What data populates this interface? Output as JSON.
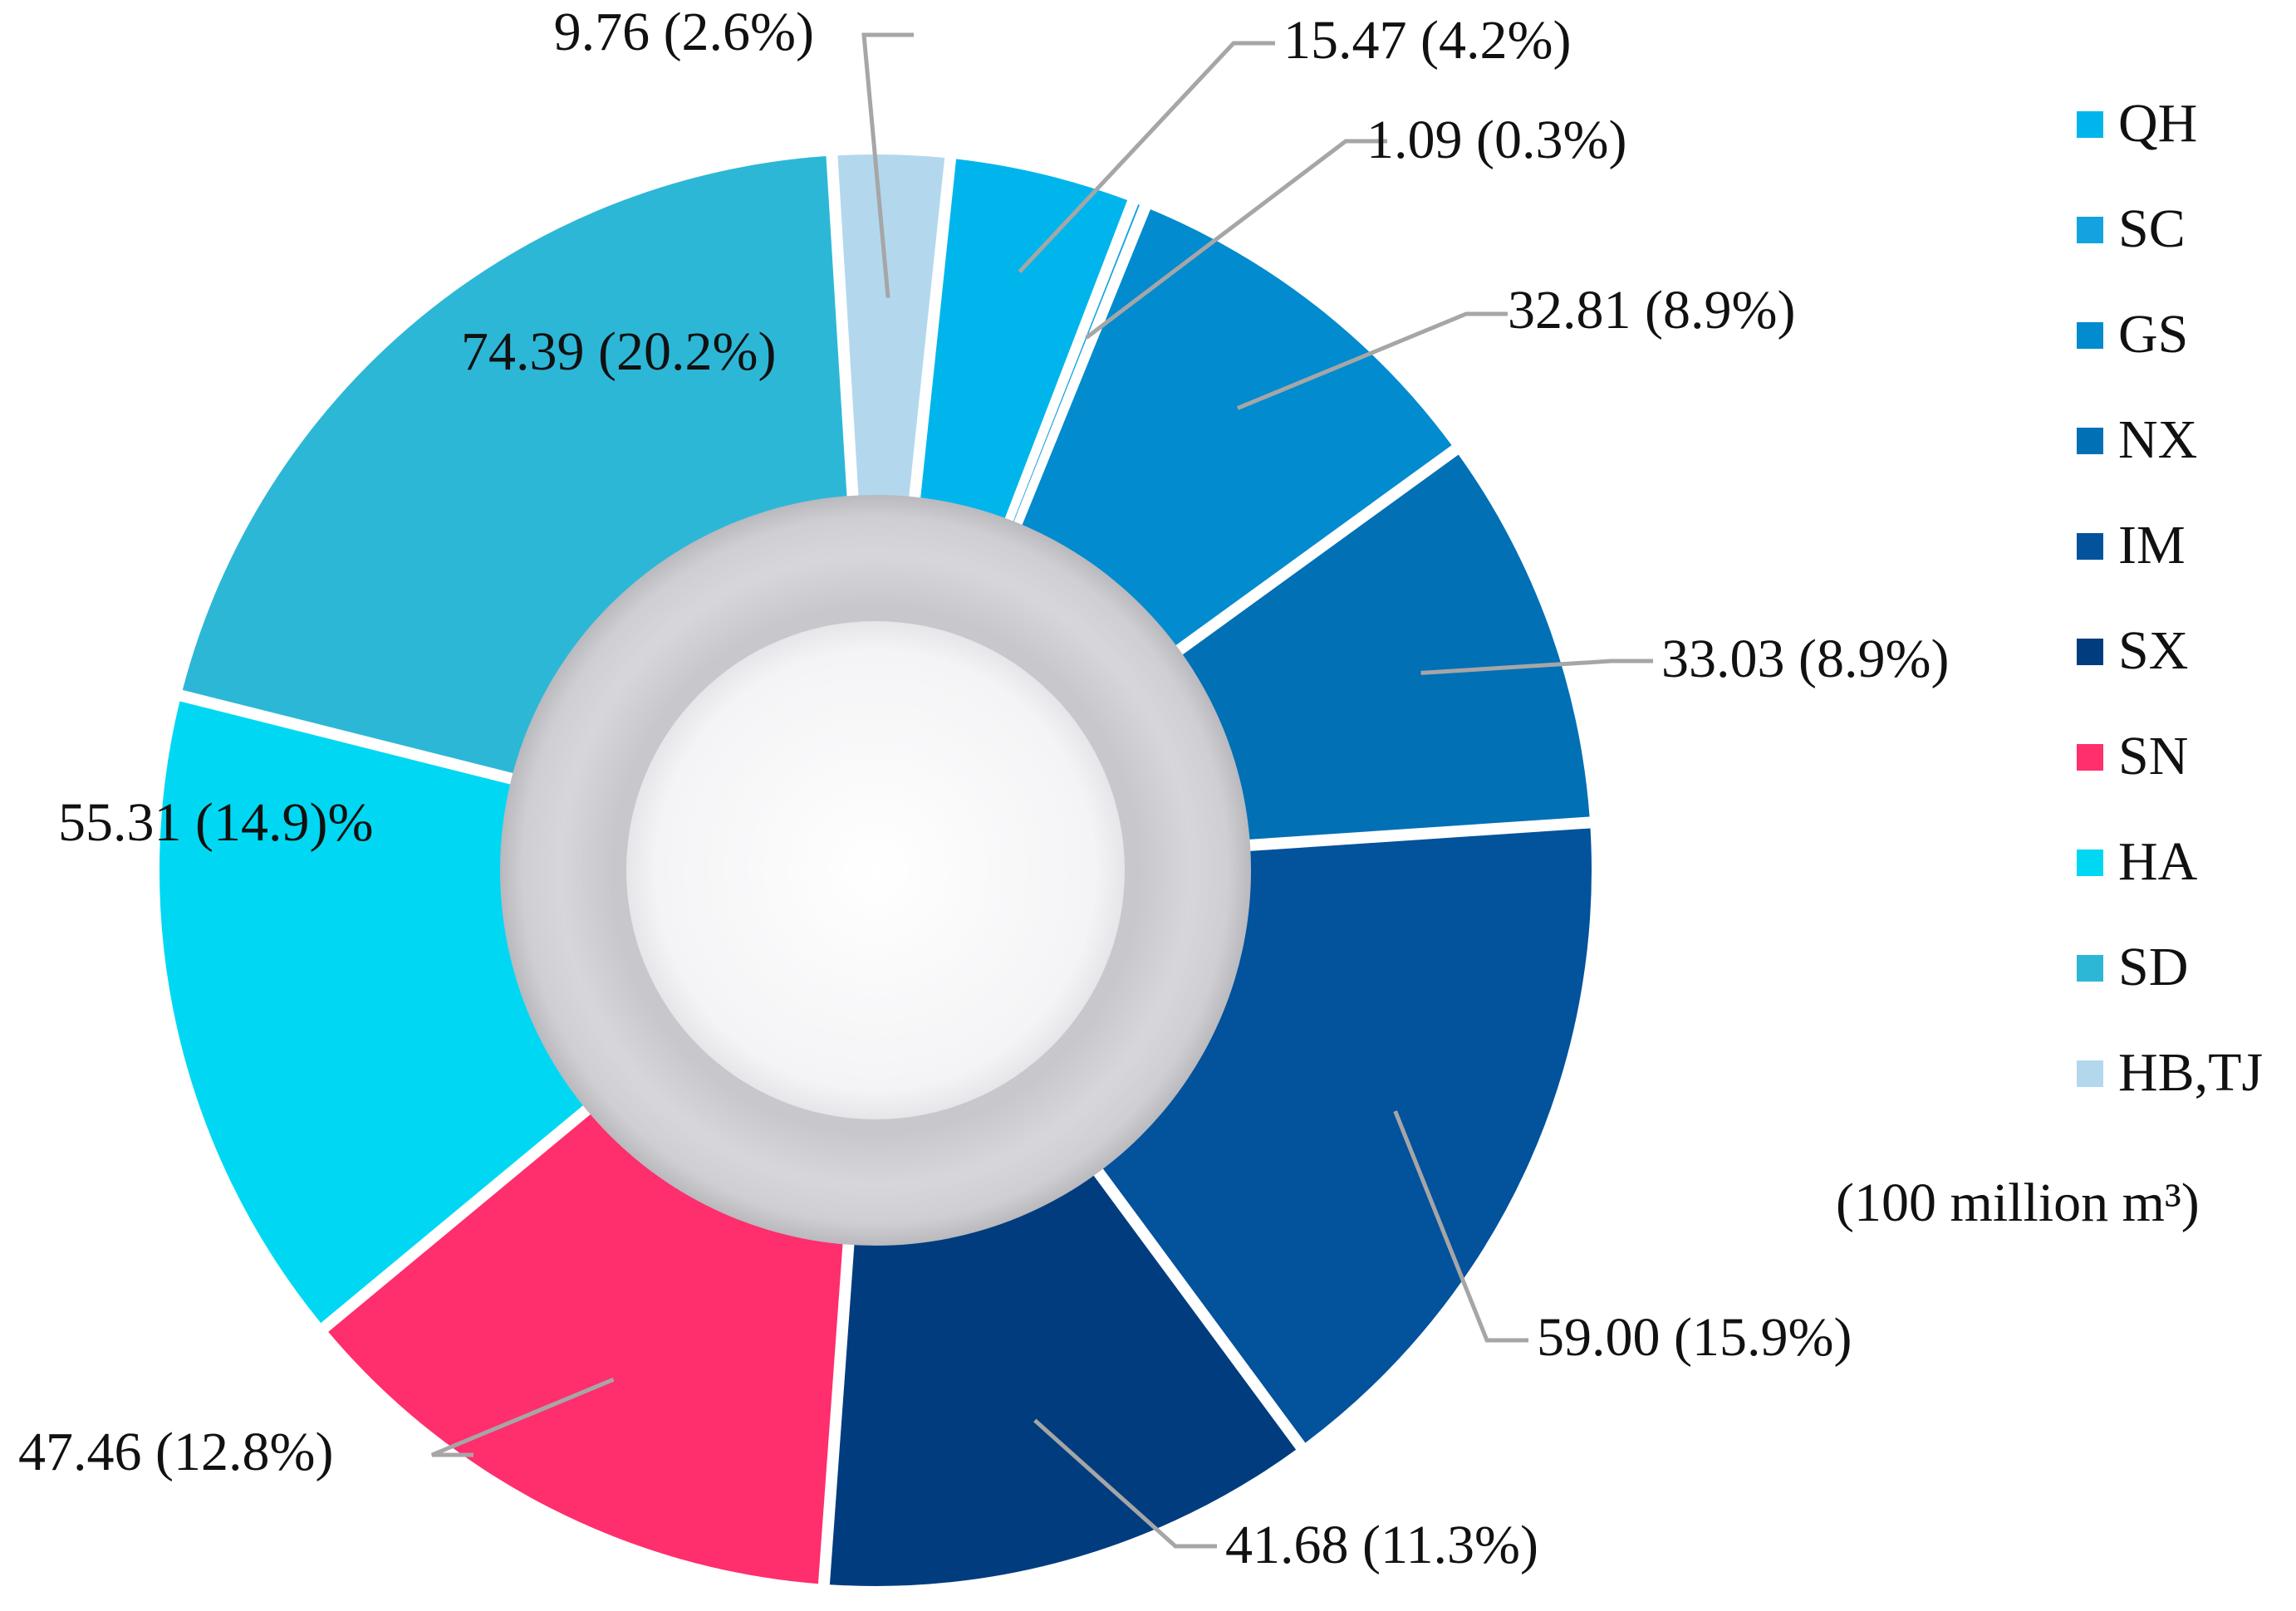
{
  "chart_data": {
    "type": "pie",
    "donut": true,
    "unit_note": "(100 million m³)",
    "slices": [
      {
        "category": "QH",
        "value": 15.47,
        "label": "15.47 (4.2%)",
        "color": "#00b5ec"
      },
      {
        "category": "SC",
        "value": 1.09,
        "label": "1.09 (0.3%)",
        "color": "#12a3e0"
      },
      {
        "category": "GS",
        "value": 32.81,
        "label": "32.81 (8.9%)",
        "color": "#028bcf"
      },
      {
        "category": "NX",
        "value": 33.03,
        "label": "33.03 (8.9%)",
        "color": "#0170b5"
      },
      {
        "category": "IM",
        "value": 59.0,
        "label": "59.00 (15.9%)",
        "color": "#02529c"
      },
      {
        "category": "SX",
        "value": 41.68,
        "label": "41.68 (11.3%)",
        "color": "#013d7e"
      },
      {
        "category": "SN",
        "value": 47.46,
        "label": "47.46 (12.8%)",
        "color": "#ff2e6d"
      },
      {
        "category": "HA",
        "value": 55.31,
        "label": "55.31 (14.9)%",
        "color": "#00d8f3"
      },
      {
        "category": "SD",
        "value": 74.39,
        "label": "74.39 (20.2%)",
        "color": "#2db7d6"
      },
      {
        "category": "HB,TJ",
        "value": 9.76,
        "label": "9.76 (2.6%)",
        "color": "#b3d8ee"
      }
    ],
    "legend_position": "right"
  }
}
